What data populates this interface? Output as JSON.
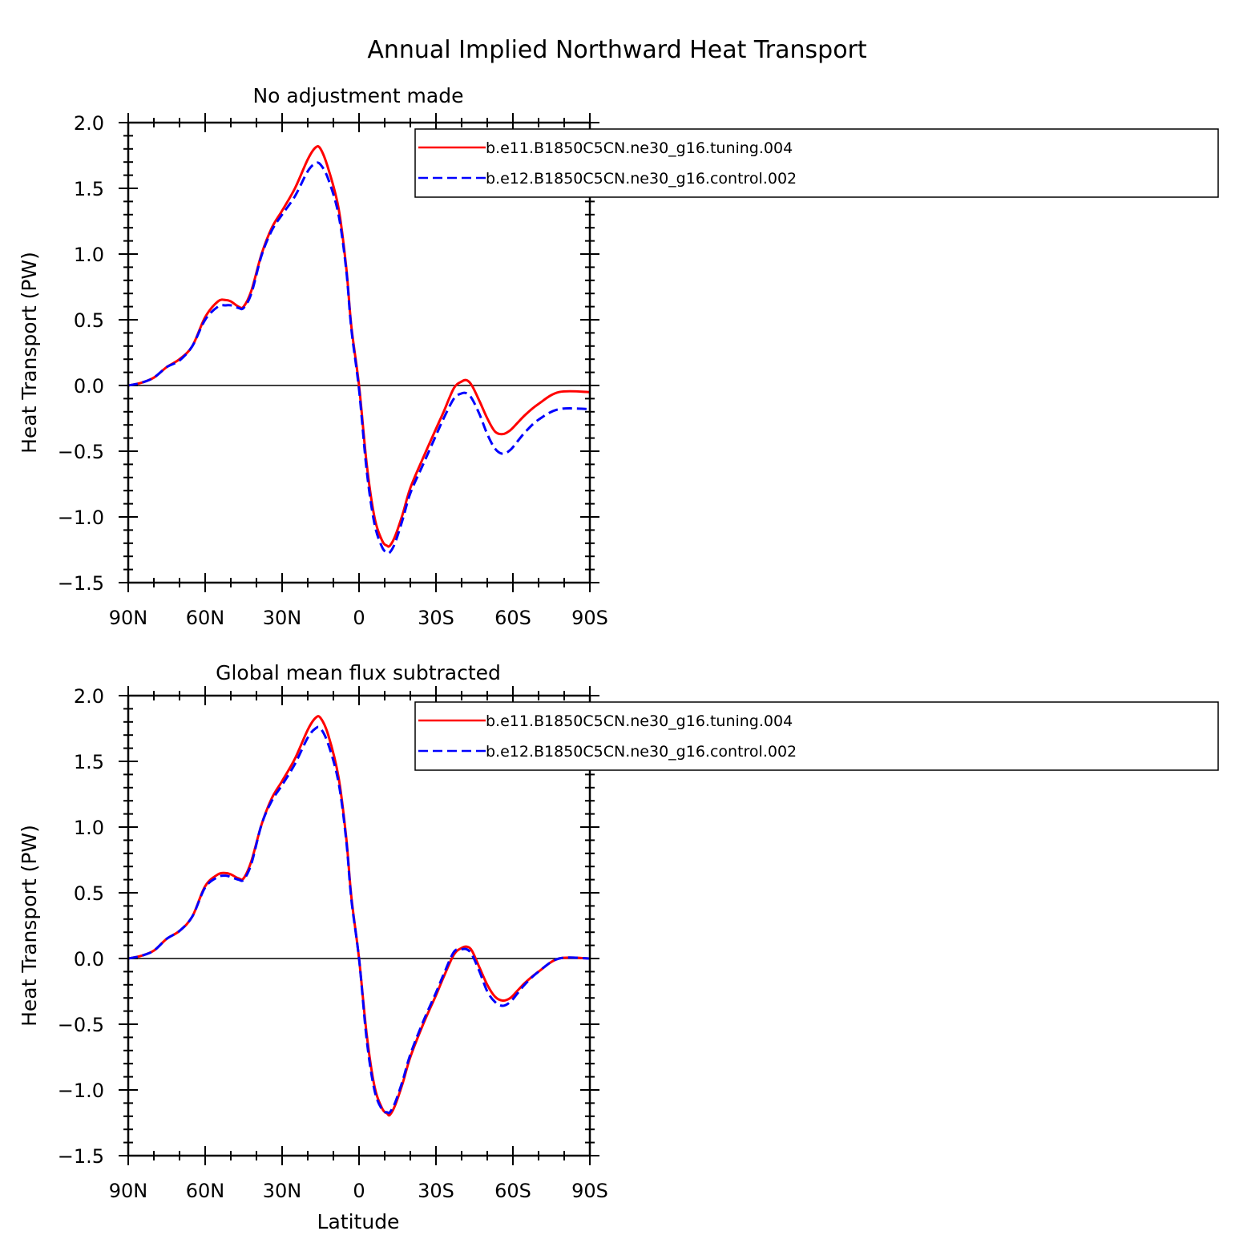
{
  "figure": {
    "title": "Annual Implied Northward Heat Transport"
  },
  "colors": {
    "series_1": "#ff0000",
    "series_2": "#0000ff",
    "axes": "#000000"
  },
  "chart_data": [
    {
      "type": "line",
      "title": "No adjustment made",
      "xlabel": "",
      "ylabel": "Heat Transport (PW)",
      "xlim": [
        -90,
        90
      ],
      "ylim": [
        -1.5,
        2.0
      ],
      "x_direction": "north-to-south",
      "xticks": [
        -90,
        -60,
        -30,
        0,
        30,
        60,
        90
      ],
      "xtick_labels": [
        "90N",
        "60N",
        "30N",
        "0",
        "30S",
        "60S",
        "90S"
      ],
      "yticks": [
        -1.5,
        -1.0,
        -0.5,
        0.0,
        0.5,
        1.0,
        1.5,
        2.0
      ],
      "ytick_labels": [
        "−1.5",
        "−1.0",
        "−0.5",
        "0.0",
        "0.5",
        "1.0",
        "1.5",
        "2.0"
      ],
      "zero_line": true,
      "legend_position": "top-right",
      "x": [
        -90,
        -85,
        -80,
        -75,
        -70,
        -65,
        -60,
        -55,
        -52,
        -50,
        -47,
        -45,
        -42,
        -38,
        -34,
        -30,
        -25,
        -20,
        -17,
        -15,
        -12,
        -8,
        -5,
        -3,
        0,
        3,
        6,
        9,
        11,
        12,
        14,
        17,
        20,
        25,
        30,
        33,
        37,
        40,
        42,
        44,
        47,
        50,
        53,
        56,
        59,
        62,
        65,
        70,
        78,
        90
      ],
      "series": [
        {
          "name": "b.e11.B1850C5CN.ne30_g16.tuning.004",
          "style": "solid",
          "values": [
            0.0,
            0.02,
            0.06,
            0.14,
            0.2,
            0.3,
            0.52,
            0.64,
            0.65,
            0.64,
            0.6,
            0.6,
            0.72,
            1.0,
            1.2,
            1.33,
            1.5,
            1.72,
            1.81,
            1.8,
            1.65,
            1.35,
            0.9,
            0.45,
            0.0,
            -0.6,
            -1.0,
            -1.18,
            -1.22,
            -1.22,
            -1.15,
            -0.98,
            -0.78,
            -0.55,
            -0.33,
            -0.2,
            -0.02,
            0.03,
            0.04,
            0.0,
            -0.12,
            -0.25,
            -0.35,
            -0.37,
            -0.34,
            -0.28,
            -0.22,
            -0.14,
            -0.05,
            -0.05
          ]
        },
        {
          "name": "b.e12.B1850C5CN.ne30_g16.control.002",
          "style": "dashed",
          "values": [
            0.0,
            0.02,
            0.06,
            0.14,
            0.19,
            0.3,
            0.5,
            0.6,
            0.61,
            0.61,
            0.59,
            0.59,
            0.7,
            0.99,
            1.18,
            1.3,
            1.44,
            1.63,
            1.69,
            1.68,
            1.57,
            1.3,
            0.88,
            0.43,
            -0.03,
            -0.65,
            -1.05,
            -1.23,
            -1.27,
            -1.27,
            -1.2,
            -1.02,
            -0.82,
            -0.6,
            -0.38,
            -0.25,
            -0.1,
            -0.06,
            -0.06,
            -0.1,
            -0.22,
            -0.37,
            -0.48,
            -0.52,
            -0.49,
            -0.42,
            -0.35,
            -0.26,
            -0.18,
            -0.18
          ]
        }
      ]
    },
    {
      "type": "line",
      "title": "Global mean flux subtracted",
      "xlabel": "Latitude",
      "ylabel": "Heat Transport (PW)",
      "xlim": [
        -90,
        90
      ],
      "ylim": [
        -1.5,
        2.0
      ],
      "x_direction": "north-to-south",
      "xticks": [
        -90,
        -60,
        -30,
        0,
        30,
        60,
        90
      ],
      "xtick_labels": [
        "90N",
        "60N",
        "30N",
        "0",
        "30S",
        "60S",
        "90S"
      ],
      "yticks": [
        -1.5,
        -1.0,
        -0.5,
        0.0,
        0.5,
        1.0,
        1.5,
        2.0
      ],
      "ytick_labels": [
        "−1.5",
        "−1.0",
        "−0.5",
        "0.0",
        "0.5",
        "1.0",
        "1.5",
        "2.0"
      ],
      "zero_line": true,
      "legend_position": "top-right",
      "x": [
        -90,
        -85,
        -80,
        -75,
        -70,
        -65,
        -60,
        -55,
        -52,
        -50,
        -47,
        -45,
        -42,
        -38,
        -34,
        -30,
        -25,
        -20,
        -17,
        -15,
        -12,
        -8,
        -5,
        -3,
        0,
        3,
        6,
        9,
        11,
        12,
        14,
        17,
        20,
        25,
        30,
        33,
        37,
        40,
        42,
        44,
        47,
        50,
        53,
        56,
        59,
        62,
        65,
        70,
        78,
        90
      ],
      "series": [
        {
          "name": "b.e11.B1850C5CN.ne30_g16.tuning.004",
          "style": "solid",
          "values": [
            0.0,
            0.02,
            0.06,
            0.15,
            0.21,
            0.32,
            0.55,
            0.64,
            0.65,
            0.64,
            0.61,
            0.61,
            0.74,
            1.02,
            1.22,
            1.35,
            1.52,
            1.74,
            1.83,
            1.83,
            1.7,
            1.38,
            0.92,
            0.47,
            0.0,
            -0.58,
            -0.97,
            -1.14,
            -1.18,
            -1.19,
            -1.12,
            -0.95,
            -0.75,
            -0.5,
            -0.28,
            -0.14,
            0.03,
            0.08,
            0.09,
            0.06,
            -0.07,
            -0.2,
            -0.29,
            -0.32,
            -0.3,
            -0.24,
            -0.18,
            -0.1,
            0.0,
            0.0
          ]
        },
        {
          "name": "b.e12.B1850C5CN.ne30_g16.control.002",
          "style": "dashed",
          "values": [
            0.0,
            0.02,
            0.06,
            0.15,
            0.21,
            0.32,
            0.54,
            0.62,
            0.63,
            0.62,
            0.6,
            0.6,
            0.72,
            1.02,
            1.2,
            1.32,
            1.48,
            1.68,
            1.75,
            1.75,
            1.63,
            1.34,
            0.9,
            0.45,
            0.0,
            -0.62,
            -1.0,
            -1.15,
            -1.17,
            -1.17,
            -1.1,
            -0.93,
            -0.73,
            -0.48,
            -0.26,
            -0.12,
            0.05,
            0.07,
            0.07,
            0.03,
            -0.1,
            -0.25,
            -0.33,
            -0.36,
            -0.33,
            -0.26,
            -0.19,
            -0.1,
            0.0,
            0.0
          ]
        }
      ]
    }
  ]
}
